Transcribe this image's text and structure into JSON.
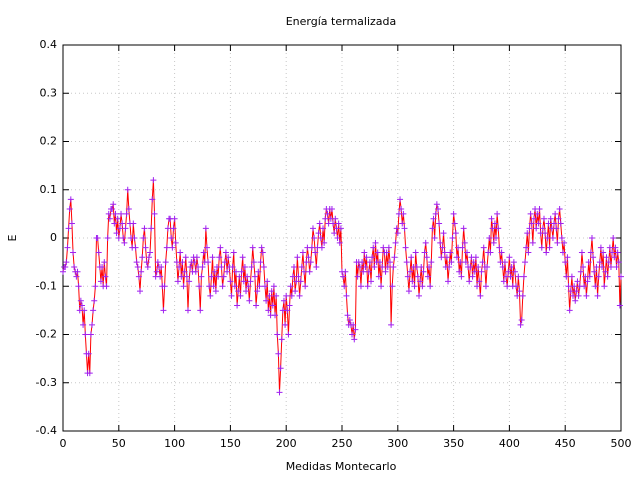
{
  "chart_data": {
    "type": "line",
    "title": "Energía termalizada",
    "x_label": "Medidas Montecarlo",
    "y_label": "E",
    "color": "#ff0000",
    "marker_color": "#a020f0",
    "grid": true,
    "xlim": [
      0,
      500
    ],
    "xticks": [
      0,
      50,
      100,
      150,
      200,
      250,
      300,
      350,
      400,
      450,
      500
    ],
    "ylim": [
      -0.4,
      0.4
    ],
    "yticks": [
      -0.4,
      -0.3,
      -0.2,
      -0.1,
      0,
      0.1,
      0.2,
      0.3,
      0.4
    ],
    "x": [
      0,
      1,
      2,
      3,
      4,
      5,
      6,
      7,
      8,
      9,
      10,
      11,
      12,
      13,
      14,
      15,
      16,
      17,
      18,
      19,
      20,
      21,
      22,
      23,
      24,
      25,
      26,
      27,
      28,
      29,
      30,
      31,
      32,
      33,
      34,
      35,
      36,
      37,
      38,
      39,
      40,
      41,
      42,
      43,
      44,
      45,
      46,
      47,
      48,
      49,
      50,
      51,
      52,
      53,
      54,
      55,
      56,
      57,
      58,
      59,
      60,
      61,
      62,
      63,
      64,
      65,
      66,
      67,
      68,
      69,
      70,
      71,
      72,
      73,
      74,
      75,
      76,
      77,
      78,
      79,
      80,
      81,
      82,
      83,
      84,
      85,
      86,
      87,
      88,
      89,
      90,
      91,
      92,
      93,
      94,
      95,
      96,
      97,
      98,
      99,
      100,
      101,
      102,
      103,
      104,
      105,
      106,
      107,
      108,
      109,
      110,
      111,
      112,
      113,
      114,
      115,
      116,
      117,
      118,
      119,
      120,
      121,
      122,
      123,
      124,
      125,
      126,
      127,
      128,
      129,
      130,
      131,
      132,
      133,
      134,
      135,
      136,
      137,
      138,
      139,
      140,
      141,
      142,
      143,
      144,
      145,
      146,
      147,
      148,
      149,
      150,
      151,
      152,
      153,
      154,
      155,
      156,
      157,
      158,
      159,
      160,
      161,
      162,
      163,
      164,
      165,
      166,
      167,
      168,
      169,
      170,
      171,
      172,
      173,
      174,
      175,
      176,
      177,
      178,
      179,
      180,
      181,
      182,
      183,
      184,
      185,
      186,
      187,
      188,
      189,
      190,
      191,
      192,
      193,
      194,
      195,
      196,
      197,
      198,
      199,
      200,
      201,
      202,
      203,
      204,
      205,
      206,
      207,
      208,
      209,
      210,
      211,
      212,
      213,
      214,
      215,
      216,
      217,
      218,
      219,
      220,
      221,
      222,
      223,
      224,
      225,
      226,
      227,
      228,
      229,
      230,
      231,
      232,
      233,
      234,
      235,
      236,
      237,
      238,
      239,
      240,
      241,
      242,
      243,
      244,
      245,
      246,
      247,
      248,
      249,
      250,
      251,
      252,
      253,
      254,
      255,
      256,
      257,
      258,
      259,
      260,
      261,
      262,
      263,
      264,
      265,
      266,
      267,
      268,
      269,
      270,
      271,
      272,
      273,
      274,
      275,
      276,
      277,
      278,
      279,
      280,
      281,
      282,
      283,
      284,
      285,
      286,
      287,
      288,
      289,
      290,
      291,
      292,
      293,
      294,
      295,
      296,
      297,
      298,
      299,
      300,
      301,
      302,
      303,
      304,
      305,
      306,
      307,
      308,
      309,
      310,
      311,
      312,
      313,
      314,
      315,
      316,
      317,
      318,
      319,
      320,
      321,
      322,
      323,
      324,
      325,
      326,
      327,
      328,
      329,
      330,
      331,
      332,
      333,
      334,
      335,
      336,
      337,
      338,
      339,
      340,
      341,
      342,
      343,
      344,
      345,
      346,
      347,
      348,
      349,
      350,
      351,
      352,
      353,
      354,
      355,
      356,
      357,
      358,
      359,
      360,
      361,
      362,
      363,
      364,
      365,
      366,
      367,
      368,
      369,
      370,
      371,
      372,
      373,
      374,
      375,
      376,
      377,
      378,
      379,
      380,
      381,
      382,
      383,
      384,
      385,
      386,
      387,
      388,
      389,
      390,
      391,
      392,
      393,
      394,
      395,
      396,
      397,
      398,
      399,
      400,
      401,
      402,
      403,
      404,
      405,
      406,
      407,
      408,
      409,
      410,
      411,
      412,
      413,
      414,
      415,
      416,
      417,
      418,
      419,
      420,
      421,
      422,
      423,
      424,
      425,
      426,
      427,
      428,
      429,
      430,
      431,
      432,
      433,
      434,
      435,
      436,
      437,
      438,
      439,
      440,
      441,
      442,
      443,
      444,
      445,
      446,
      447,
      448,
      449,
      450,
      451,
      452,
      453,
      454,
      455,
      456,
      457,
      458,
      459,
      460,
      461,
      462,
      463,
      464,
      465,
      466,
      467,
      468,
      469,
      470,
      471,
      472,
      473,
      474,
      475,
      476,
      477,
      478,
      479,
      480,
      481,
      482,
      483,
      484,
      485,
      486,
      487,
      488,
      489,
      490,
      491,
      492,
      493,
      494,
      495,
      496,
      497,
      498,
      499,
      500
    ],
    "values": [
      -0.07,
      -0.06,
      -0.06,
      -0.05,
      -0.02,
      0.02,
      0.06,
      0.08,
      0.03,
      -0.03,
      -0.06,
      -0.07,
      -0.08,
      -0.07,
      -0.1,
      -0.15,
      -0.13,
      -0.14,
      -0.18,
      -0.15,
      -0.2,
      -0.24,
      -0.28,
      -0.24,
      -0.28,
      -0.2,
      -0.18,
      -0.15,
      -0.13,
      -0.1,
      0,
      0,
      -0.03,
      -0.06,
      -0.09,
      -0.06,
      -0.1,
      -0.05,
      -0.08,
      -0.1,
      0,
      0.05,
      0.04,
      0.06,
      0.06,
      0.07,
      0.03,
      0.05,
      0.01,
      0.04,
      0,
      0.02,
      0.05,
      0.03,
      0,
      -0.01,
      0.02,
      0.05,
      0.1,
      0.06,
      0.03,
      0,
      -0.02,
      0.03,
      0,
      -0.02,
      -0.05,
      -0.06,
      -0.08,
      -0.11,
      -0.07,
      -0.04,
      0,
      0.02,
      -0.02,
      -0.05,
      -0.06,
      -0.04,
      -0.03,
      0.02,
      0.08,
      0.12,
      0.05,
      -0.08,
      -0.07,
      -0.05,
      -0.06,
      -0.08,
      -0.06,
      -0.1,
      -0.15,
      -0.1,
      -0.05,
      -0.02,
      0.02,
      0.04,
      0.04,
      0,
      -0.02,
      0.02,
      0.04,
      -0.01,
      -0.05,
      -0.09,
      -0.06,
      -0.03,
      -0.08,
      -0.05,
      -0.1,
      -0.07,
      -0.04,
      -0.08,
      -0.15,
      -0.09,
      -0.06,
      -0.05,
      -0.07,
      -0.04,
      -0.05,
      -0.07,
      -0.04,
      -0.06,
      -0.1,
      -0.15,
      -0.08,
      -0.06,
      -0.03,
      -0.05,
      0.02,
      -0.02,
      -0.05,
      -0.1,
      -0.12,
      -0.08,
      -0.04,
      -0.1,
      -0.07,
      -0.11,
      -0.06,
      -0.08,
      -0.04,
      -0.02,
      -0.06,
      -0.1,
      -0.08,
      -0.05,
      -0.03,
      -0.07,
      -0.04,
      -0.06,
      -0.09,
      -0.12,
      -0.06,
      -0.03,
      -0.1,
      -0.07,
      -0.14,
      -0.11,
      -0.08,
      -0.12,
      -0.07,
      -0.04,
      -0.09,
      -0.06,
      -0.11,
      -0.08,
      -0.1,
      -0.13,
      -0.09,
      -0.06,
      -0.02,
      -0.05,
      -0.08,
      -0.14,
      -0.11,
      -0.07,
      -0.1,
      -0.05,
      -0.02,
      -0.03,
      -0.06,
      -0.1,
      -0.13,
      -0.09,
      -0.15,
      -0.12,
      -0.16,
      -0.11,
      -0.14,
      -0.1,
      -0.16,
      -0.12,
      -0.2,
      -0.24,
      -0.32,
      -0.27,
      -0.21,
      -0.15,
      -0.13,
      -0.18,
      -0.12,
      -0.15,
      -0.2,
      -0.14,
      -0.1,
      -0.12,
      -0.08,
      -0.06,
      -0.11,
      -0.09,
      -0.04,
      -0.08,
      -0.12,
      -0.09,
      -0.06,
      -0.03,
      -0.07,
      -0.1,
      -0.05,
      -0.02,
      -0.04,
      -0.07,
      -0.05,
      -0.02,
      0.02,
      0,
      -0.03,
      -0.06,
      -0.02,
      0.01,
      0.03,
      0,
      -0.02,
      0.02,
      -0.01,
      0.04,
      0.06,
      0.05,
      0.03,
      0.06,
      0.04,
      0.06,
      0.03,
      0.01,
      0.04,
      0.02,
      0,
      0.03,
      -0.01,
      0.02,
      -0.07,
      -0.08,
      -0.1,
      -0.07,
      -0.12,
      -0.16,
      -0.18,
      -0.17,
      -0.18,
      -0.2,
      -0.18,
      -0.21,
      -0.19,
      -0.05,
      -0.08,
      -0.05,
      -0.06,
      -0.1,
      -0.05,
      -0.07,
      -0.03,
      -0.06,
      -0.04,
      -0.1,
      -0.07,
      -0.05,
      -0.09,
      -0.04,
      -0.02,
      -0.06,
      -0.01,
      -0.05,
      -0.03,
      -0.08,
      -0.05,
      -0.1,
      -0.06,
      -0.02,
      -0.03,
      -0.07,
      -0.03,
      -0.06,
      -0.02,
      -0.05,
      -0.18,
      -0.1,
      -0.06,
      -0.04,
      -0.01,
      0.02,
      0.01,
      0.05,
      0.08,
      0.06,
      0.03,
      0.05,
      0.02,
      -0.02,
      -0.05,
      -0.08,
      -0.11,
      -0.07,
      -0.04,
      -0.09,
      -0.06,
      -0.1,
      -0.03,
      -0.06,
      -0.08,
      -0.12,
      -0.09,
      -0.06,
      -0.1,
      -0.07,
      -0.03,
      -0.01,
      -0.04,
      -0.08,
      -0.06,
      -0.1,
      -0.05,
      0.02,
      0.04,
      0,
      0.05,
      0.07,
      0.06,
      0.03,
      -0.01,
      -0.04,
      -0.02,
      0.01,
      -0.03,
      -0.06,
      -0.04,
      -0.09,
      -0.06,
      -0.03,
      -0.05,
      0,
      0.05,
      0.03,
      0.01,
      -0.04,
      -0.02,
      -0.07,
      -0.05,
      -0.08,
      -0.02,
      0.02,
      -0.01,
      -0.05,
      -0.03,
      -0.06,
      -0.09,
      -0.06,
      -0.04,
      -0.08,
      -0.05,
      -0.07,
      -0.04,
      -0.1,
      -0.06,
      -0.09,
      -0.12,
      -0.07,
      -0.05,
      -0.02,
      -0.06,
      -0.1,
      -0.06,
      -0.03,
      0,
      -0.03,
      0.04,
      0.02,
      -0.01,
      0.03,
      0,
      0.05,
      0.02,
      -0.02,
      -0.05,
      -0.03,
      -0.06,
      -0.09,
      -0.05,
      -0.08,
      -0.1,
      -0.07,
      -0.04,
      -0.08,
      -0.06,
      -0.1,
      -0.05,
      -0.07,
      -0.1,
      -0.12,
      -0.08,
      -0.11,
      -0.18,
      -0.17,
      -0.12,
      -0.08,
      -0.05,
      -0.02,
      0.01,
      -0.03,
      0.02,
      0.05,
      0.03,
      -0.01,
      0.04,
      0.06,
      0.02,
      0.05,
      0.03,
      0.06,
      0.01,
      -0.02,
      0.02,
      0.04,
      0.01,
      -0.03,
      0,
      0.03,
      -0.02,
      0.04,
      0.02,
      0,
      0.03,
      0.05,
      0.02,
      -0.01,
      0.04,
      0.06,
      0.03,
      0,
      -0.03,
      -0.01,
      -0.05,
      -0.08,
      -0.04,
      -0.1,
      -0.15,
      -0.11,
      -0.08,
      -0.12,
      -0.1,
      -0.13,
      -0.11,
      -0.09,
      -0.12,
      -0.1,
      -0.07,
      -0.03,
      -0.06,
      -0.1,
      -0.08,
      -0.12,
      -0.09,
      -0.05,
      -0.08,
      -0.03,
      0,
      -0.04,
      -0.07,
      -0.1,
      -0.06,
      -0.12,
      -0.08,
      -0.05,
      -0.02,
      -0.06,
      -0.03,
      -0.1,
      -0.07,
      -0.04,
      -0.08,
      -0.05,
      -0.02,
      -0.06,
      -0.03,
      0,
      -0.04,
      -0.02,
      -0.06,
      -0.03,
      -0.05,
      -0.14,
      -0.08
    ]
  }
}
